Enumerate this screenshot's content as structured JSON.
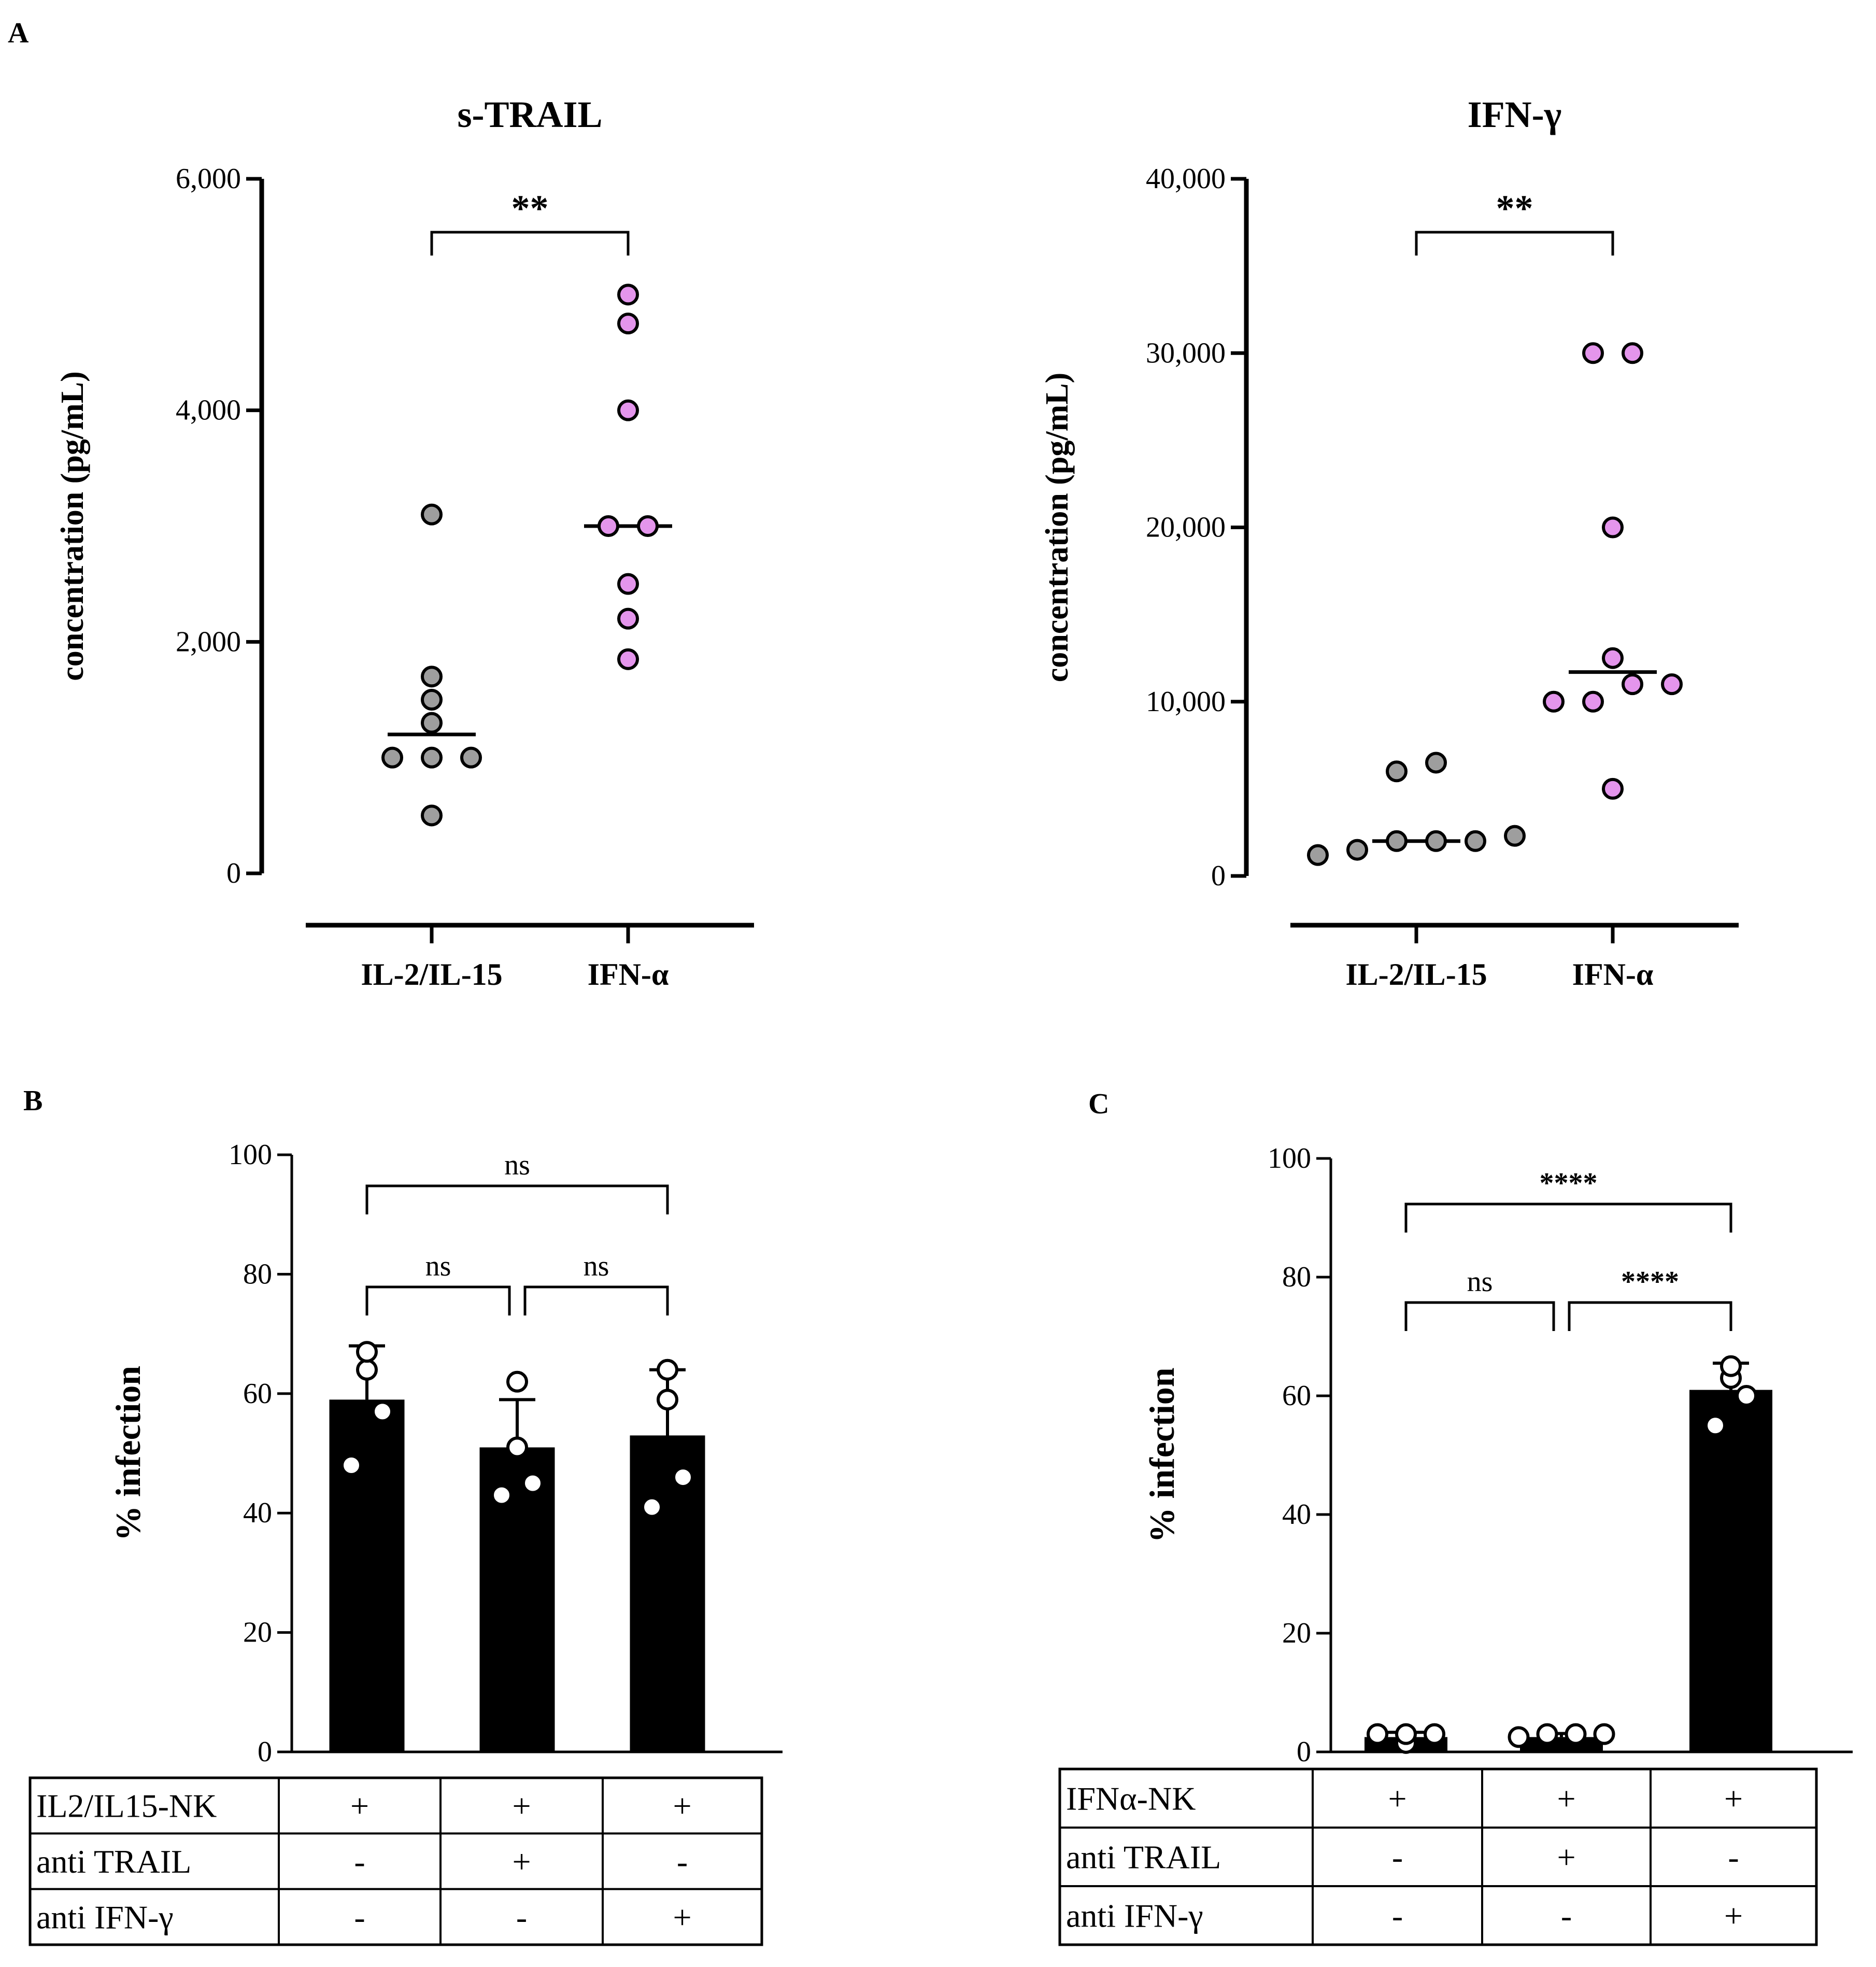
{
  "panels": {
    "A": {
      "letter": "A"
    },
    "B": {
      "letter": "B"
    },
    "C": {
      "letter": "C"
    }
  },
  "chart_data": [
    {
      "id": "a1",
      "type": "scatter",
      "title": "s-TRAIL",
      "ylabel": "concentration (pg/mL)",
      "xlabel": "",
      "ylim": [
        0,
        6000
      ],
      "yticks": [
        0,
        2000,
        4000,
        6000
      ],
      "ytick_labels": [
        "0",
        "2,000",
        "4,000",
        "6,000"
      ],
      "categories": [
        "IL-2/IL-15",
        "IFN-α"
      ],
      "series": [
        {
          "values": [
            500,
            1000,
            1000,
            1000,
            1300,
            1500,
            1700,
            3100
          ],
          "median": 1200,
          "color": "#9e9e9e"
        },
        {
          "values": [
            1850,
            2200,
            2500,
            3000,
            3000,
            4000,
            4750,
            5000
          ],
          "median": 3000,
          "color": "#e495ec"
        }
      ],
      "significance": [
        {
          "from": 0,
          "to": 1,
          "label": "**"
        }
      ]
    },
    {
      "id": "a2",
      "type": "scatter",
      "title": "IFN-γ",
      "ylabel": "concentration (pg/mL)",
      "xlabel": "",
      "ylim": [
        0,
        40000
      ],
      "yticks": [
        0,
        10000,
        20000,
        30000,
        40000
      ],
      "ytick_labels": [
        "0",
        "10,000",
        "20,000",
        "30,000",
        "40,000"
      ],
      "categories": [
        "IL-2/IL-15",
        "IFN-α"
      ],
      "series": [
        {
          "values": [
            1200,
            1500,
            2000,
            2000,
            2000,
            2300,
            6000,
            6500
          ],
          "median": 2000,
          "color": "#9e9e9e"
        },
        {
          "values": [
            5000,
            10000,
            10000,
            11000,
            11000,
            12500,
            20000,
            30000,
            30000
          ],
          "median": 11700,
          "color": "#e495ec"
        }
      ],
      "significance": [
        {
          "from": 0,
          "to": 1,
          "label": "**"
        }
      ]
    },
    {
      "id": "b",
      "type": "bar",
      "ylabel": "% infection",
      "xlabel": "",
      "ylim": [
        0,
        100
      ],
      "yticks": [
        0,
        20,
        40,
        60,
        80,
        100
      ],
      "ytick_labels": [
        "0",
        "20",
        "40",
        "60",
        "80",
        "100"
      ],
      "values": [
        59,
        51,
        53
      ],
      "errors": [
        9,
        8,
        11
      ],
      "points": [
        [
          48,
          57,
          64,
          67
        ],
        [
          43,
          45,
          51,
          62
        ],
        [
          41,
          46,
          59,
          64
        ]
      ],
      "significance": [
        {
          "from": 0,
          "to": 1,
          "label": "ns",
          "level": 1
        },
        {
          "from": 1,
          "to": 2,
          "label": "ns",
          "level": 1
        },
        {
          "from": 0,
          "to": 2,
          "label": "ns",
          "level": 2
        }
      ],
      "table": {
        "rows": [
          {
            "label": "IL2/IL15-NK",
            "cells": [
              "+",
              "+",
              "+"
            ]
          },
          {
            "label": "anti TRAIL",
            "cells": [
              "-",
              "+",
              "-"
            ]
          },
          {
            "label": "anti IFN-γ",
            "cells": [
              "-",
              "-",
              "+"
            ]
          }
        ]
      }
    },
    {
      "id": "c",
      "type": "bar",
      "ylabel": "% infection",
      "xlabel": "",
      "ylim": [
        0,
        100
      ],
      "yticks": [
        0,
        20,
        40,
        60,
        80,
        100
      ],
      "ytick_labels": [
        "0",
        "20",
        "40",
        "60",
        "80",
        "100"
      ],
      "values": [
        2.5,
        2.5,
        61
      ],
      "errors": [
        0.8,
        0.6,
        4.5
      ],
      "points": [
        [
          1.5,
          3,
          3,
          3
        ],
        [
          3,
          3,
          3,
          2.5
        ],
        [
          55,
          60,
          63,
          65
        ]
      ],
      "significance": [
        {
          "from": 0,
          "to": 1,
          "label": "ns",
          "level": 1
        },
        {
          "from": 1,
          "to": 2,
          "label": "****",
          "level": 1
        },
        {
          "from": 0,
          "to": 2,
          "label": "****",
          "level": 2
        }
      ],
      "table": {
        "rows": [
          {
            "label": "IFNα-NK",
            "cells": [
              "+",
              "+",
              "+"
            ]
          },
          {
            "label": "anti TRAIL",
            "cells": [
              "-",
              "+",
              "-"
            ]
          },
          {
            "label": "anti IFN-γ",
            "cells": [
              "-",
              "-",
              "+"
            ]
          }
        ]
      }
    }
  ]
}
